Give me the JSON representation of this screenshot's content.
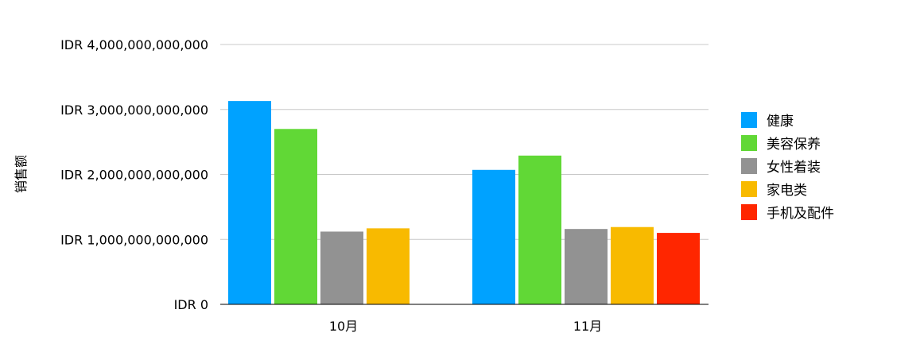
{
  "chart_data": {
    "type": "bar",
    "title": "",
    "xlabel": "",
    "ylabel": "销售额",
    "ylim": [
      0,
      4000000000000
    ],
    "yticks": [
      0,
      1000000000000,
      2000000000000,
      3000000000000,
      4000000000000
    ],
    "ytick_labels": [
      "IDR 0",
      "IDR 1,000,000,000,000",
      "IDR 2,000,000,000,000",
      "IDR 3,000,000,000,000",
      "IDR 4,000,000,000,000"
    ],
    "categories": [
      "10月",
      "11月"
    ],
    "grid": true,
    "legend_position": "right",
    "series": [
      {
        "name": "健康",
        "color": "#00A2FF",
        "values": [
          3130000000000,
          2070000000000
        ]
      },
      {
        "name": "美容保养",
        "color": "#61D836",
        "values": [
          2700000000000,
          2290000000000
        ]
      },
      {
        "name": "女性着装",
        "color": "#929292",
        "values": [
          1120000000000,
          1160000000000
        ]
      },
      {
        "name": "家电类",
        "color": "#F8BA00",
        "values": [
          1170000000000,
          1190000000000
        ]
      },
      {
        "name": "手机及配件",
        "color": "#FF2600",
        "values": [
          null,
          1100000000000
        ]
      }
    ]
  }
}
